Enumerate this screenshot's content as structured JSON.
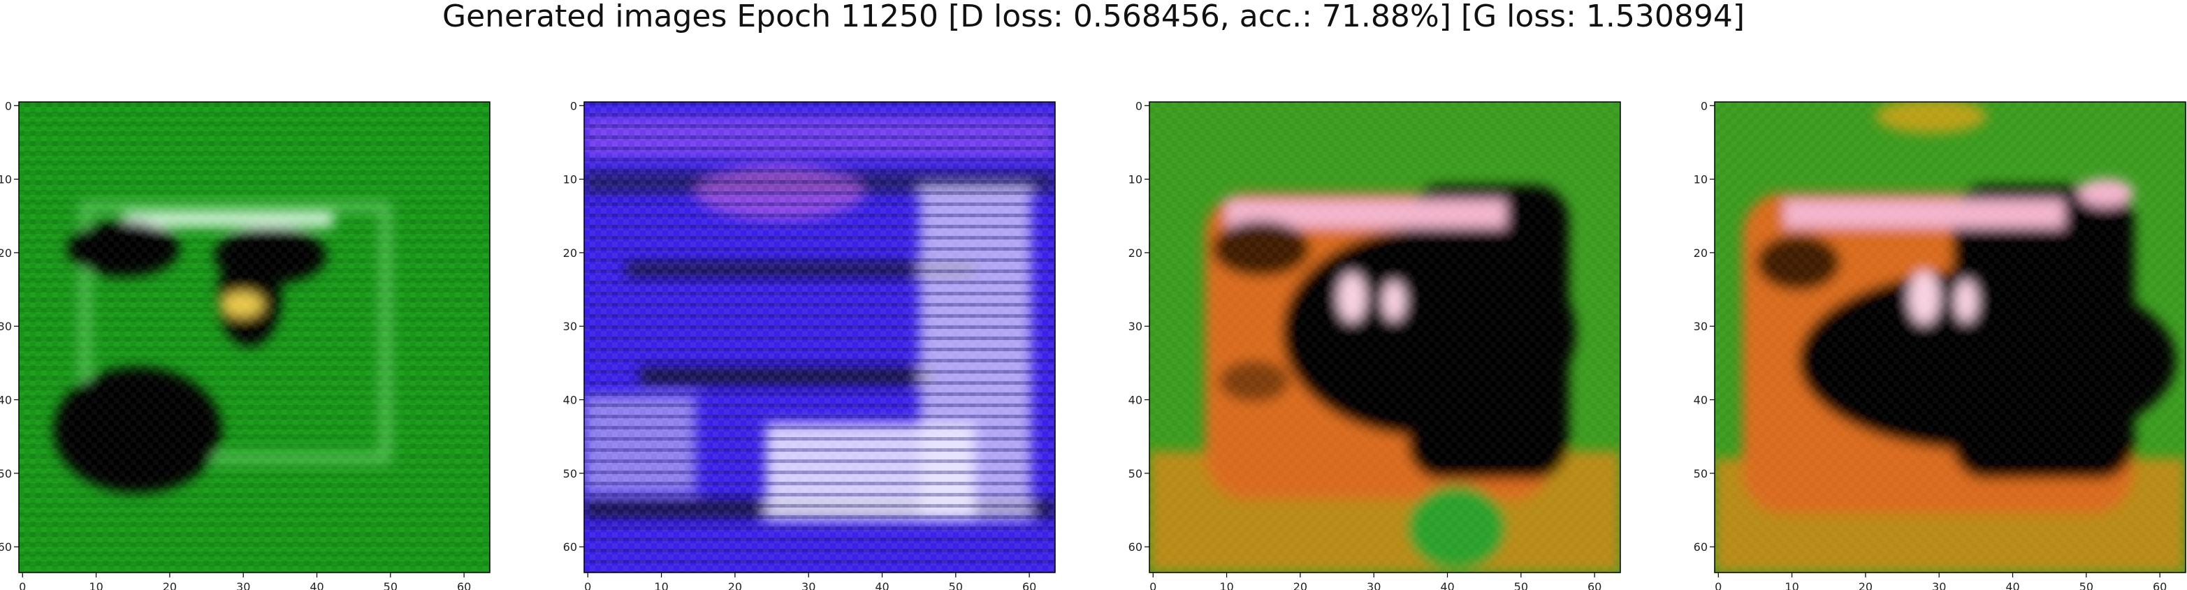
{
  "figure": {
    "title": "Generated images Epoch 11250 [D loss: 0.568456, acc.: 71.88%] [G loss: 1.530894]"
  },
  "chart_data": [
    {
      "type": "heatmap",
      "image": "generated GAN sample 1",
      "dominant_colors": [
        "#1aa51a",
        "#0a0a0a",
        "#c8f0c8"
      ],
      "x_ticks": [
        "0",
        "10",
        "20",
        "30",
        "40",
        "50",
        "60"
      ],
      "y_ticks": [
        "0",
        "10",
        "20",
        "30",
        "40",
        "50",
        "60"
      ],
      "xlim": [
        -0.5,
        63.5
      ],
      "ylim": [
        63.5,
        -0.5
      ],
      "grid": false
    },
    {
      "type": "heatmap",
      "image": "generated GAN sample 2",
      "dominant_colors": [
        "#2d1ee6",
        "#7a3cf0",
        "#e0d8f8",
        "#101010"
      ],
      "x_ticks": [
        "0",
        "10",
        "20",
        "30",
        "40",
        "50",
        "60"
      ],
      "y_ticks": [
        "0",
        "10",
        "20",
        "30",
        "40",
        "50",
        "60"
      ],
      "xlim": [
        -0.5,
        63.5
      ],
      "ylim": [
        63.5,
        -0.5
      ],
      "grid": false
    },
    {
      "type": "heatmap",
      "image": "generated GAN sample 3",
      "dominant_colors": [
        "#3a9a1e",
        "#d86a1e",
        "#020202",
        "#f0b0c8",
        "#b88a14"
      ],
      "x_ticks": [
        "0",
        "10",
        "20",
        "30",
        "40",
        "50",
        "60"
      ],
      "y_ticks": [
        "0",
        "10",
        "20",
        "30",
        "40",
        "50",
        "60"
      ],
      "xlim": [
        -0.5,
        63.5
      ],
      "ylim": [
        63.5,
        -0.5
      ],
      "grid": false
    },
    {
      "type": "heatmap",
      "image": "generated GAN sample 4",
      "dominant_colors": [
        "#3a9a1e",
        "#d86a1e",
        "#020202",
        "#f0b0c8",
        "#b88a14"
      ],
      "x_ticks": [
        "0",
        "10",
        "20",
        "30",
        "40",
        "50",
        "60"
      ],
      "y_ticks": [
        "0",
        "10",
        "20",
        "30",
        "40",
        "50",
        "60"
      ],
      "xlim": [
        -0.5,
        63.5
      ],
      "ylim": [
        63.5,
        -0.5
      ],
      "grid": false
    }
  ]
}
